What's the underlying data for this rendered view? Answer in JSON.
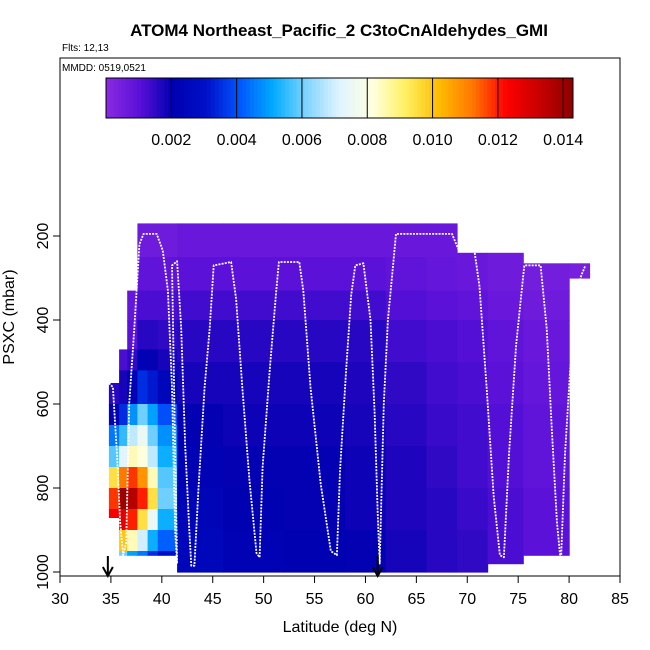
{
  "chart_data": {
    "type": "heatmap",
    "title": "ATOM4 Northeast_Pacific_2 C3toCnAldehydes_GMI",
    "subtitle_flights": "Flts: 12,13",
    "subtitle_dates": "MMDD: 0519,0521",
    "xlabel": "Latitude (deg N)",
    "ylabel": "PSXC (mbar)",
    "xlim": [
      30,
      85
    ],
    "ylim": [
      1020,
      0
    ],
    "x_ticks": [
      30,
      35,
      40,
      45,
      50,
      55,
      60,
      65,
      70,
      75,
      80,
      85
    ],
    "y_ticks": [
      200,
      400,
      600,
      800,
      1000
    ],
    "colorbar": {
      "range": [
        0,
        0.0143
      ],
      "ticks": [
        "0.002",
        "0.004",
        "0.006",
        "0.008",
        "0.010",
        "0.012",
        "0.014"
      ],
      "tick_values": [
        0.002,
        0.004,
        0.006,
        0.008,
        0.01,
        0.012,
        0.014
      ],
      "colors": [
        "#8a2be2",
        "#5a10d8",
        "#0000b0",
        "#0010c8",
        "#0055ff",
        "#00aaff",
        "#7fd4ff",
        "#e0f4ff",
        "#ffffe0",
        "#ffef60",
        "#ffbb00",
        "#ff7700",
        "#ff0000",
        "#c80000",
        "#8b0000"
      ]
    },
    "columns": [
      {
        "lat": [
          34.8,
          35.8
        ],
        "p": [
          550,
          870
        ],
        "cells": [
          [
            550,
            0.0016
          ],
          [
            600,
            0.0022
          ],
          [
            650,
            0.0045
          ],
          [
            700,
            0.0058
          ],
          [
            750,
            0.0095
          ],
          [
            800,
            0.0118
          ],
          [
            850,
            0.0124
          ]
        ]
      },
      {
        "lat": [
          35.8,
          36.6
        ],
        "p": [
          470,
          960
        ],
        "cells": [
          [
            470,
            0.0012
          ],
          [
            520,
            0.0018
          ],
          [
            600,
            0.0035
          ],
          [
            650,
            0.0055
          ],
          [
            700,
            0.0072
          ],
          [
            750,
            0.0112
          ],
          [
            800,
            0.014
          ],
          [
            850,
            0.0128
          ],
          [
            900,
            0.01
          ],
          [
            950,
            0.006
          ]
        ]
      },
      {
        "lat": [
          36.6,
          37.6
        ],
        "p": [
          330,
          960
        ],
        "cells": [
          [
            330,
            0.0008
          ],
          [
            400,
            0.001
          ],
          [
            470,
            0.0015
          ],
          [
            520,
            0.0022
          ],
          [
            600,
            0.0048
          ],
          [
            650,
            0.0068
          ],
          [
            700,
            0.0085
          ],
          [
            750,
            0.0118
          ],
          [
            800,
            0.0136
          ],
          [
            850,
            0.012
          ],
          [
            900,
            0.0085
          ],
          [
            950,
            0.005
          ]
        ]
      },
      {
        "lat": [
          37.6,
          38.6
        ],
        "p": [
          170,
          960
        ],
        "cells": [
          [
            170,
            0.0006
          ],
          [
            250,
            0.0009
          ],
          [
            330,
            0.0012
          ],
          [
            400,
            0.0016
          ],
          [
            470,
            0.0022
          ],
          [
            520,
            0.0035
          ],
          [
            600,
            0.006
          ],
          [
            650,
            0.0075
          ],
          [
            700,
            0.0082
          ],
          [
            750,
            0.0108
          ],
          [
            800,
            0.012
          ],
          [
            850,
            0.0095
          ],
          [
            900,
            0.007
          ],
          [
            950,
            0.0045
          ]
        ]
      },
      {
        "lat": [
          38.6,
          39.6
        ],
        "p": [
          170,
          960
        ],
        "cells": [
          [
            170,
            0.0006
          ],
          [
            250,
            0.0009
          ],
          [
            330,
            0.0012
          ],
          [
            400,
            0.0016
          ],
          [
            470,
            0.002
          ],
          [
            520,
            0.0032
          ],
          [
            600,
            0.005
          ],
          [
            650,
            0.006
          ],
          [
            700,
            0.0068
          ],
          [
            750,
            0.0085
          ],
          [
            800,
            0.0095
          ],
          [
            850,
            0.0075
          ],
          [
            900,
            0.0052
          ],
          [
            950,
            0.0035
          ]
        ]
      },
      {
        "lat": [
          39.6,
          41.5
        ],
        "p": [
          170,
          960
        ],
        "cells": [
          [
            170,
            0.0006
          ],
          [
            250,
            0.0009
          ],
          [
            330,
            0.0012
          ],
          [
            400,
            0.0015
          ],
          [
            470,
            0.0018
          ],
          [
            520,
            0.0025
          ],
          [
            600,
            0.004
          ],
          [
            650,
            0.0048
          ],
          [
            700,
            0.0052
          ],
          [
            750,
            0.0058
          ],
          [
            800,
            0.006
          ],
          [
            850,
            0.0052
          ],
          [
            900,
            0.0042
          ],
          [
            950,
            0.003
          ]
        ]
      },
      {
        "lat": [
          41.5,
          46
        ],
        "p": [
          170,
          1000
        ],
        "cells": [
          [
            170,
            0.0007
          ],
          [
            250,
            0.001
          ],
          [
            330,
            0.0013
          ],
          [
            400,
            0.0016
          ],
          [
            500,
            0.0018
          ],
          [
            600,
            0.002
          ],
          [
            700,
            0.0022
          ],
          [
            800,
            0.0024
          ],
          [
            900,
            0.0025
          ]
        ]
      },
      {
        "lat": [
          46,
          52
        ],
        "p": [
          170,
          1000
        ],
        "cells": [
          [
            170,
            0.0007
          ],
          [
            250,
            0.001
          ],
          [
            330,
            0.0013
          ],
          [
            400,
            0.0016
          ],
          [
            500,
            0.0018
          ],
          [
            600,
            0.0019
          ],
          [
            700,
            0.002
          ],
          [
            800,
            0.0021
          ],
          [
            900,
            0.0022
          ]
        ]
      },
      {
        "lat": [
          52,
          58
        ],
        "p": [
          170,
          1000
        ],
        "cells": [
          [
            170,
            0.0007
          ],
          [
            250,
            0.001
          ],
          [
            330,
            0.0013
          ],
          [
            400,
            0.0016
          ],
          [
            500,
            0.0018
          ],
          [
            600,
            0.0019
          ],
          [
            700,
            0.002
          ],
          [
            800,
            0.002
          ],
          [
            900,
            0.0021
          ]
        ]
      },
      {
        "lat": [
          58,
          62
        ],
        "p": [
          170,
          1000
        ],
        "cells": [
          [
            170,
            0.0007
          ],
          [
            250,
            0.001
          ],
          [
            330,
            0.0013
          ],
          [
            400,
            0.0016
          ],
          [
            500,
            0.0017
          ],
          [
            600,
            0.0018
          ],
          [
            700,
            0.0019
          ],
          [
            800,
            0.0019
          ],
          [
            900,
            0.002
          ]
        ]
      },
      {
        "lat": [
          62,
          66
        ],
        "p": [
          170,
          1000
        ],
        "cells": [
          [
            170,
            0.0007
          ],
          [
            250,
            0.0009
          ],
          [
            330,
            0.0011
          ],
          [
            400,
            0.0013
          ],
          [
            500,
            0.0015
          ],
          [
            600,
            0.0016
          ],
          [
            700,
            0.0017
          ],
          [
            800,
            0.0017
          ],
          [
            900,
            0.0018
          ]
        ]
      },
      {
        "lat": [
          66,
          69
        ],
        "p": [
          170,
          1000
        ],
        "cells": [
          [
            170,
            0.0007
          ],
          [
            250,
            0.0008
          ],
          [
            330,
            0.001
          ],
          [
            400,
            0.0012
          ],
          [
            500,
            0.0013
          ],
          [
            600,
            0.0014
          ],
          [
            700,
            0.0015
          ],
          [
            800,
            0.0016
          ],
          [
            900,
            0.0016
          ]
        ]
      },
      {
        "lat": [
          69,
          72
        ],
        "p": [
          240,
          1000
        ],
        "cells": [
          [
            240,
            0.0007
          ],
          [
            330,
            0.0009
          ],
          [
            400,
            0.0011
          ],
          [
            500,
            0.0012
          ],
          [
            600,
            0.0013
          ],
          [
            700,
            0.0013
          ],
          [
            800,
            0.0014
          ],
          [
            900,
            0.0015
          ]
        ]
      },
      {
        "lat": [
          72,
          75.5
        ],
        "p": [
          240,
          980
        ],
        "cells": [
          [
            240,
            0.0006
          ],
          [
            330,
            0.0007
          ],
          [
            400,
            0.0009
          ],
          [
            500,
            0.001
          ],
          [
            600,
            0.0011
          ],
          [
            700,
            0.0011
          ],
          [
            800,
            0.0012
          ],
          [
            900,
            0.0012
          ]
        ]
      },
      {
        "lat": [
          75.5,
          80
        ],
        "p": [
          265,
          960
        ],
        "cells": [
          [
            265,
            0.0005
          ],
          [
            330,
            0.0006
          ],
          [
            400,
            0.0007
          ],
          [
            500,
            0.0008
          ],
          [
            600,
            0.0009
          ],
          [
            700,
            0.0009
          ],
          [
            800,
            0.001
          ],
          [
            900,
            0.001
          ]
        ]
      },
      {
        "lat": [
          80,
          82
        ],
        "p": [
          265,
          300
        ],
        "cells": [
          [
            265,
            0.0004
          ]
        ]
      }
    ],
    "flight_track": [
      [
        34.8,
        550
      ],
      [
        35.2,
        560
      ],
      [
        35.6,
        720
      ],
      [
        35.9,
        880
      ],
      [
        36.2,
        960
      ],
      [
        36.5,
        930
      ],
      [
        36.8,
        600
      ],
      [
        37.3,
        420
      ],
      [
        37.8,
        220
      ],
      [
        38.2,
        195
      ],
      [
        39.5,
        195
      ],
      [
        40.1,
        235
      ],
      [
        40.6,
        330
      ],
      [
        41.0,
        560
      ],
      [
        41.3,
        900
      ],
      [
        41.5,
        980
      ],
      [
        41.0,
        270
      ],
      [
        41.5,
        260
      ],
      [
        41.9,
        420
      ],
      [
        42.3,
        700
      ],
      [
        42.7,
        900
      ],
      [
        42.9,
        985
      ],
      [
        43.2,
        985
      ],
      [
        43.6,
        800
      ],
      [
        44.2,
        560
      ],
      [
        44.7,
        420
      ],
      [
        45.1,
        270
      ],
      [
        46.8,
        262
      ],
      [
        47.3,
        350
      ],
      [
        47.9,
        560
      ],
      [
        48.6,
        780
      ],
      [
        49.3,
        955
      ],
      [
        49.6,
        965
      ],
      [
        49.9,
        750
      ],
      [
        50.6,
        520
      ],
      [
        51.2,
        340
      ],
      [
        51.5,
        262
      ],
      [
        53.5,
        262
      ],
      [
        53.9,
        330
      ],
      [
        54.6,
        560
      ],
      [
        55.6,
        790
      ],
      [
        56.6,
        950
      ],
      [
        57.2,
        960
      ],
      [
        57.5,
        760
      ],
      [
        58.1,
        520
      ],
      [
        58.6,
        340
      ],
      [
        59.0,
        270
      ],
      [
        59.8,
        265
      ],
      [
        60.5,
        400
      ],
      [
        60.9,
        620
      ],
      [
        61.2,
        860
      ],
      [
        61.4,
        980
      ],
      [
        61.8,
        600
      ],
      [
        62.2,
        400
      ],
      [
        62.6,
        300
      ],
      [
        63.0,
        195
      ],
      [
        68.5,
        195
      ],
      [
        69.1,
        230
      ],
      [
        70.7,
        235
      ],
      [
        71.2,
        320
      ],
      [
        71.9,
        560
      ],
      [
        72.6,
        820
      ],
      [
        73.2,
        960
      ],
      [
        73.6,
        965
      ],
      [
        74.1,
        720
      ],
      [
        74.8,
        460
      ],
      [
        75.6,
        270
      ],
      [
        77.2,
        270
      ],
      [
        77.8,
        420
      ],
      [
        78.3,
        660
      ],
      [
        78.8,
        880
      ],
      [
        79.2,
        980
      ],
      [
        79.6,
        720
      ],
      [
        80.1,
        520
      ],
      [
        80.6,
        390
      ],
      [
        81.1,
        300
      ],
      [
        81.6,
        270
      ]
    ],
    "arrows_lat": [
      34.7,
      61.2
    ]
  }
}
